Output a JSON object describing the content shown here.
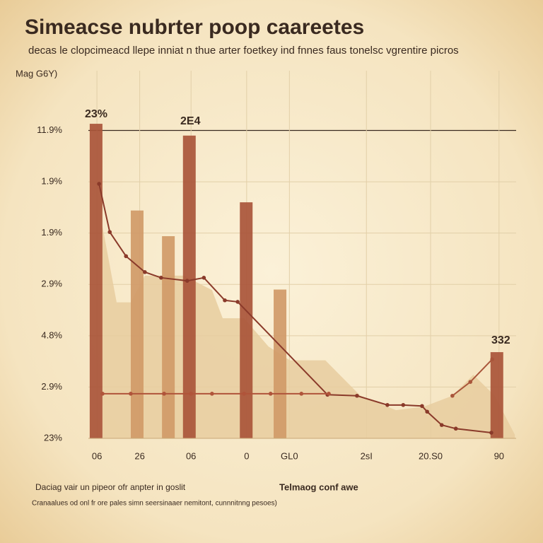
{
  "chart_data": {
    "type": "bar",
    "title": "Simeacse nubrter poop caareetes",
    "subtitle": "decas le clopcimeacd llepe inniat n thue arter foetkey ind fnnes faus tonelsc vgrentire picros",
    "y_label": "Mag G6Y)",
    "annotations": [
      "23%",
      "2E4",
      "332"
    ],
    "footer": [
      "Daciag vair un pipeor ofr anpter in goslit",
      "Telmaog conf awe",
      "Cranaalues od onl fr ore pales simn seersinaaer nemitont, cunnnitnng pesoes)"
    ],
    "xlim": [
      0,
      100
    ],
    "ylim": [
      0,
      6.2
    ],
    "xticks": [
      {
        "value": 2,
        "label": "06"
      },
      {
        "value": 12,
        "label": "26"
      },
      {
        "value": 24,
        "label": "06"
      },
      {
        "value": 37,
        "label": "0"
      },
      {
        "value": 47,
        "label": "GL0"
      },
      {
        "value": 65,
        "label": "2sI"
      },
      {
        "value": 80,
        "label": "20.S0"
      },
      {
        "value": 96,
        "label": "90"
      }
    ],
    "yticks": [
      {
        "value": 0,
        "label": "23%"
      },
      {
        "value": 1,
        "label": "2.9%"
      },
      {
        "value": 2,
        "label": "4.8%"
      },
      {
        "value": 3,
        "label": "2.9%"
      },
      {
        "value": 4,
        "label": "1.9%"
      },
      {
        "value": 5,
        "label": "1.9%"
      },
      {
        "value": 6,
        "label": "11.9%"
      }
    ],
    "grid": true,
    "series": [
      {
        "type": "area",
        "color": "#e8cd9f",
        "x": [
          3.3,
          6.6,
          9.9,
          13.2,
          22.3,
          28.9,
          31.4,
          36.4,
          42.1,
          47.1,
          55.4,
          63.6,
          71.9,
          78.5,
          85.1,
          90,
          95,
          99.7
        ],
        "values": [
          4.13,
          2.65,
          2.65,
          3.17,
          3.17,
          2.89,
          2.34,
          2.34,
          1.79,
          1.52,
          1.52,
          0.83,
          0.55,
          0.62,
          0.83,
          1.24,
          0.83,
          0.07
        ]
      },
      {
        "type": "bar",
        "color": "#d09a68",
        "x": [
          11.4,
          18.7,
          44.8
        ],
        "values": [
          4.44,
          3.94,
          2.9
        ]
      },
      {
        "type": "bar",
        "color": "#a9553a",
        "x": [
          1.8,
          23.6,
          36.9,
          95.5
        ],
        "values": [
          6.13,
          5.9,
          4.6,
          1.68
        ]
      },
      {
        "type": "line",
        "color": "#8a3a2a",
        "x": [
          2.5,
          5,
          8.8,
          13.2,
          17,
          23.1,
          27,
          31.9,
          34.9,
          55.9,
          62.8,
          69.9,
          73.6,
          78,
          79.2,
          82.6,
          85.9,
          94.2
        ],
        "values": [
          4.96,
          4.02,
          3.55,
          3.24,
          3.13,
          3.07,
          3.13,
          2.69,
          2.66,
          0.85,
          0.83,
          0.65,
          0.65,
          0.63,
          0.52,
          0.26,
          0.19,
          0.11
        ]
      },
      {
        "type": "line",
        "color": "#b0543a",
        "x": [
          3.3,
          9.9,
          17.7,
          24,
          28.9,
          36.4,
          42.6,
          49.8,
          56.2
        ],
        "values": [
          0.87,
          0.87,
          0.87,
          0.87,
          0.87,
          0.87,
          0.87,
          0.87,
          0.87
        ]
      },
      {
        "type": "line",
        "color": "#a9553a",
        "x": [
          85.1,
          89.3,
          94.4
        ],
        "values": [
          0.83,
          1.1,
          1.54
        ]
      }
    ]
  }
}
